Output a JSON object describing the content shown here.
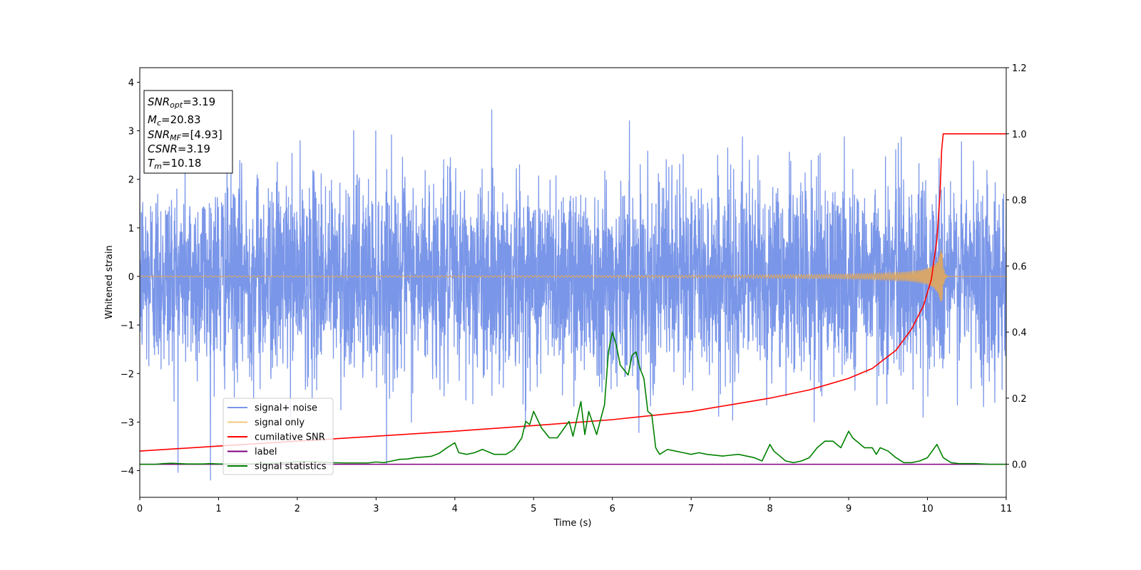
{
  "chart_data": {
    "type": "line",
    "xlabel": "Time (s)",
    "ylabel": "Whitened strain",
    "xlim": [
      0,
      11
    ],
    "ylim": [
      -4.55,
      4.3
    ],
    "y2lim": [
      -0.1,
      1.2
    ],
    "x_ticks": [
      0,
      1,
      2,
      3,
      4,
      5,
      6,
      7,
      8,
      9,
      10,
      11
    ],
    "y_ticks": [
      -4,
      -3,
      -2,
      -1,
      0,
      1,
      2,
      3,
      4
    ],
    "y2_ticks": [
      0.0,
      0.2,
      0.4,
      0.6,
      0.8,
      1.0,
      1.2
    ],
    "legend_position": "lower-left",
    "annotation": {
      "lines": [
        {
          "main": "SNR",
          "sub": "opt",
          "value": "=3.19"
        },
        {
          "main": "M",
          "sub": "c",
          "value": "=20.83"
        },
        {
          "main": "SNR",
          "sub": "MF",
          "value": "=[4.93]"
        },
        {
          "main": "CSNR",
          "sub": "",
          "value": "=3.19"
        },
        {
          "main": "T",
          "sub": "m",
          "value": "=10.18"
        }
      ]
    },
    "series": [
      {
        "name": "signal+ noise",
        "color": "#7a96e8",
        "axis": "left",
        "description_kind": "noise",
        "sigma": 1.0,
        "points": 4400
      },
      {
        "name": "signal only",
        "color": "#f5c77e",
        "axis": "left",
        "description_kind": "chirp",
        "merger_time": 10.18,
        "peak_amplitude": 0.68
      },
      {
        "name": "cumilative SNR",
        "color": "#ff0000",
        "axis": "right",
        "x": [
          0,
          1,
          2,
          3,
          4,
          5,
          6,
          7,
          8,
          8.5,
          9,
          9.3,
          9.6,
          9.8,
          9.95,
          10.05,
          10.12,
          10.16,
          10.18,
          10.2,
          11
        ],
        "y": [
          0.04,
          0.055,
          0.07,
          0.085,
          0.1,
          0.117,
          0.135,
          0.16,
          0.2,
          0.225,
          0.26,
          0.29,
          0.345,
          0.41,
          0.48,
          0.56,
          0.68,
          0.82,
          0.95,
          1.0,
          1.0
        ]
      },
      {
        "name": "label",
        "color": "#800080",
        "axis": "right",
        "x": [
          0,
          11
        ],
        "y": [
          0.0,
          0.0
        ]
      },
      {
        "name": "signal statistics",
        "color": "#008000",
        "axis": "right",
        "x": [
          0,
          0.1,
          0.2,
          0.3,
          0.4,
          0.5,
          0.6,
          0.7,
          0.8,
          0.9,
          1.0,
          1.2,
          1.4,
          1.6,
          1.8,
          2.0,
          2.2,
          2.4,
          2.6,
          2.8,
          2.9,
          3.0,
          3.1,
          3.2,
          3.3,
          3.4,
          3.5,
          3.6,
          3.7,
          3.8,
          3.9,
          4.0,
          4.05,
          4.15,
          4.25,
          4.35,
          4.5,
          4.65,
          4.75,
          4.85,
          4.9,
          4.95,
          5.0,
          5.1,
          5.2,
          5.3,
          5.45,
          5.5,
          5.6,
          5.65,
          5.7,
          5.8,
          5.9,
          5.95,
          6.0,
          6.05,
          6.1,
          6.2,
          6.25,
          6.3,
          6.35,
          6.4,
          6.45,
          6.5,
          6.55,
          6.6,
          6.7,
          6.8,
          6.9,
          7.0,
          7.1,
          7.2,
          7.4,
          7.6,
          7.8,
          7.9,
          8.0,
          8.05,
          8.1,
          8.2,
          8.3,
          8.4,
          8.5,
          8.6,
          8.7,
          8.8,
          8.9,
          9.0,
          9.05,
          9.1,
          9.2,
          9.3,
          9.35,
          9.4,
          9.5,
          9.6,
          9.7,
          9.8,
          9.9,
          10.0,
          10.12,
          10.2,
          10.3,
          10.4,
          10.6,
          10.8,
          11.0
        ],
        "y": [
          0.0,
          0.0,
          0.0,
          0.002,
          0.003,
          0.002,
          0.001,
          0.001,
          0.001,
          0.002,
          0.001,
          0.001,
          0.001,
          0.002,
          0.004,
          0.008,
          0.008,
          0.005,
          0.004,
          0.004,
          0.004,
          0.007,
          0.005,
          0.01,
          0.015,
          0.016,
          0.02,
          0.022,
          0.024,
          0.033,
          0.05,
          0.065,
          0.035,
          0.03,
          0.035,
          0.045,
          0.03,
          0.03,
          0.045,
          0.08,
          0.13,
          0.12,
          0.16,
          0.11,
          0.08,
          0.08,
          0.13,
          0.085,
          0.19,
          0.09,
          0.16,
          0.09,
          0.18,
          0.34,
          0.4,
          0.36,
          0.3,
          0.27,
          0.33,
          0.34,
          0.29,
          0.26,
          0.16,
          0.15,
          0.05,
          0.03,
          0.045,
          0.04,
          0.035,
          0.03,
          0.035,
          0.03,
          0.025,
          0.03,
          0.02,
          0.01,
          0.06,
          0.04,
          0.03,
          0.01,
          0.005,
          0.01,
          0.02,
          0.05,
          0.07,
          0.07,
          0.05,
          0.1,
          0.08,
          0.07,
          0.05,
          0.05,
          0.03,
          0.05,
          0.04,
          0.02,
          0.005,
          0.005,
          0.01,
          0.02,
          0.06,
          0.02,
          0.005,
          0.002,
          0.002,
          0.0,
          0.0
        ]
      }
    ]
  }
}
